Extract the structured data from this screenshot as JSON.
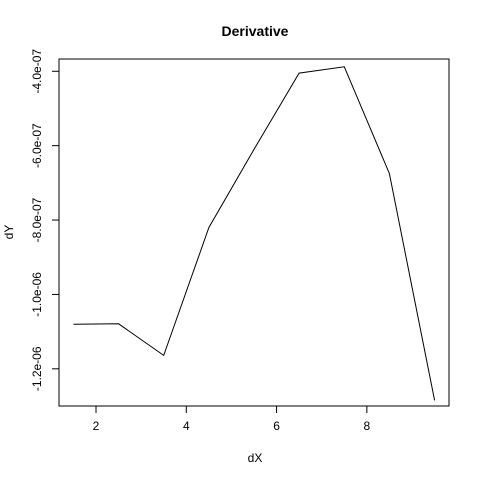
{
  "chart_data": {
    "type": "line",
    "title": "Derivative",
    "xlabel": "dX",
    "ylabel": "dY",
    "x": [
      1.5,
      2.5,
      3.5,
      4.5,
      5.5,
      6.5,
      7.5,
      8.5,
      9.5
    ],
    "y": [
      -1.08e-06,
      -1.079e-06,
      -1.164e-06,
      -8.2e-07,
      -6.1e-07,
      -4.05e-07,
      -3.88e-07,
      -6.75e-07,
      -1.285e-06
    ],
    "xlim": [
      1.18,
      9.82
    ],
    "ylim": [
      -1.3e-06,
      -3.67e-07
    ],
    "xticks": [
      2,
      4,
      6,
      8
    ],
    "xtick_labels": [
      "2",
      "4",
      "6",
      "8"
    ],
    "yticks": [
      -1.2e-06,
      -1e-06,
      -8e-07,
      -6e-07,
      -4e-07
    ],
    "ytick_labels": [
      "-1.2e-06",
      "-1.0e-06",
      "-8.0e-07",
      "-6.0e-07",
      "-4.0e-07"
    ],
    "grid": false,
    "line_color": "#000000"
  }
}
